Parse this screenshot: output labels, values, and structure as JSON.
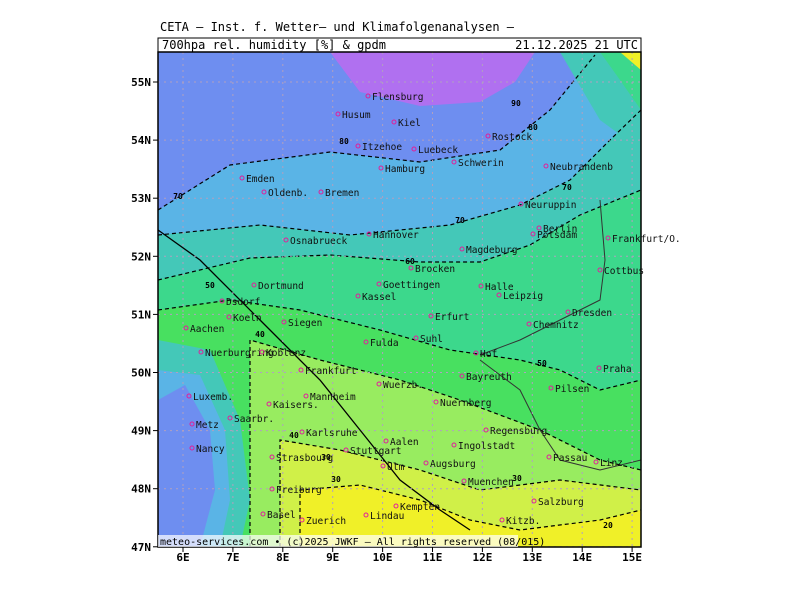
{
  "header": {
    "institute": "CETA — Inst. f. Wetter— und Klimafolgenanalysen —",
    "product": "700hpa_rel._humidity_[%]_&_gpdm",
    "datetime": "21.12.2025 21 UTC"
  },
  "axes": {
    "lat_labels": [
      "55N",
      "54N",
      "53N",
      "52N",
      "51N",
      "50N",
      "49N",
      "48N",
      "47N"
    ],
    "lon_labels": [
      "6E",
      "7E",
      "8E",
      "9E",
      "10E",
      "11E",
      "12E",
      "13E",
      "14E",
      "15E"
    ]
  },
  "contour_labels": [
    "90",
    "80",
    "80",
    "70",
    "70",
    "70",
    "60",
    "50",
    "50",
    "40",
    "40",
    "30",
    "30",
    "30",
    "20"
  ],
  "cities": [
    "Flensburg",
    "Husum",
    "Kiel",
    "Rostock",
    "Itzehoe",
    "Luebeck",
    "Hamburg",
    "Schwerin",
    "Neubrandenb",
    "Emden",
    "Oldenb.",
    "Bremen",
    "Neuruppin",
    "Berlin",
    "Potsdam",
    "Hannover",
    "Osnabrueck",
    "Magdeburg",
    "Frankfurt/O.",
    "Cottbus",
    "Brocken",
    "Dortmund",
    "Goettingen",
    "Halle",
    "Leipzig",
    "Kassel",
    "Dresden",
    "Dsdorf",
    "Koeln",
    "Aachen",
    "Siegen",
    "Erfurt",
    "Chemnitz",
    "Fulda",
    "Suhl",
    "Hof",
    "Nuerburgring",
    "Koblenz",
    "Frankfurt",
    "Bayreuth",
    "Praha",
    "Luxemb.",
    "Wuerzb.",
    "Pilsen",
    "Mannheim",
    "Nuernberg",
    "Kaisers.",
    "Metz",
    "Saarbr.",
    "Karlsruhe",
    "Regensburg",
    "Aalen",
    "Ingolstadt",
    "Nancy",
    "Stuttgart",
    "Strasbourg",
    "Ulm",
    "Augsburg",
    "Passau",
    "Linz",
    "Freiburg",
    "Muenchen",
    "Salzburg",
    "Basel",
    "Zuerich",
    "Lindau",
    "Kempten",
    "Kitzb."
  ],
  "footer": "meteo-services.com • (c)2025 JWKF — All rights reserved (08/015)"
}
